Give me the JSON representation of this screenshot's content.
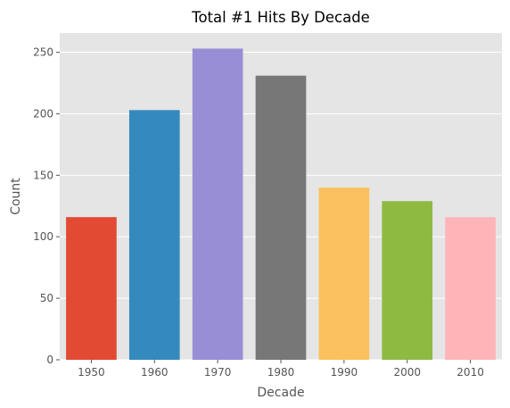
{
  "chart_data": {
    "type": "bar",
    "title": "Total #1 Hits By Decade",
    "xlabel": "Decade",
    "ylabel": "Count",
    "categories": [
      "1950",
      "1960",
      "1970",
      "1980",
      "1990",
      "2000",
      "2010"
    ],
    "values": [
      116,
      203,
      253,
      231,
      140,
      129,
      116
    ],
    "colors": [
      "#E24A33",
      "#348ABD",
      "#988ED5",
      "#777777",
      "#FBC15E",
      "#8EBA42",
      "#FFB5B8"
    ],
    "yticks": [
      0,
      50,
      100,
      150,
      200,
      250
    ],
    "ylim": [
      0,
      265.65
    ],
    "grid": true,
    "background": "#E5E5E5",
    "grid_color": "#FFFFFF"
  }
}
